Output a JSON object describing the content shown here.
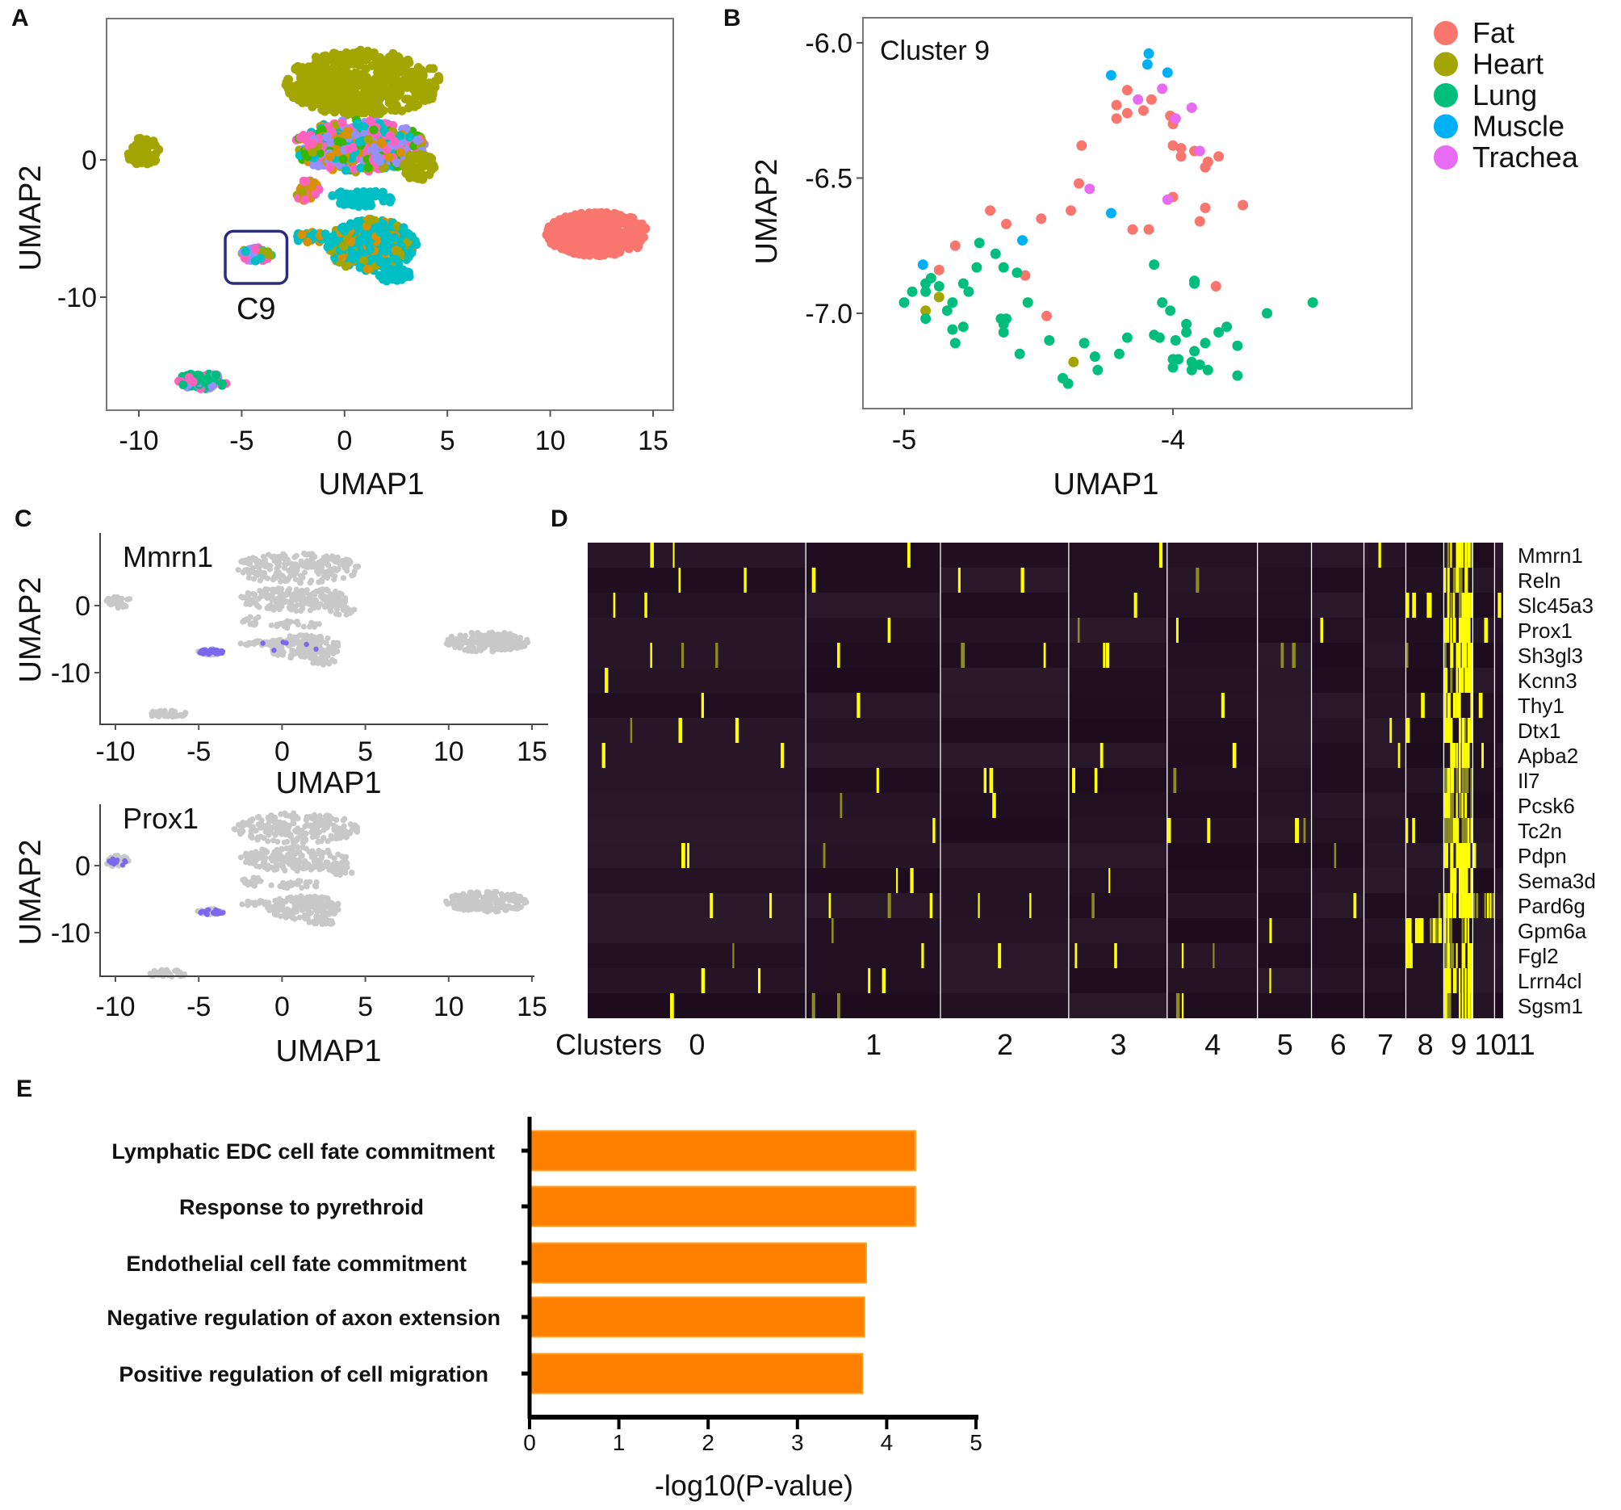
{
  "panel_labels": {
    "a": "A",
    "b": "B",
    "c": "C",
    "d": "D",
    "e": "E"
  },
  "colors": {
    "Fat": "#F8766D",
    "Heart": "#A3A500",
    "Lung": "#00BF7D",
    "Muscle": "#00B0F6",
    "Trachea": "#E76BF3",
    "cyan": "#00BFC4",
    "orange": "#D89000",
    "purple": "#9590FF",
    "pink": "#FF62BC",
    "green": "#39B600",
    "gray": "#C8C8C8",
    "expr": "#7B68EE",
    "bar": "#FF8000",
    "heat_low": "#1C0D1C",
    "heat_high": "#FFFF00",
    "box": "#2B2B80"
  },
  "chart_data": [
    {
      "id": "A",
      "type": "scatter",
      "title": "",
      "xlabel": "UMAP1",
      "ylabel": "UMAP2",
      "xlim": [
        -12,
        16
      ],
      "ylim": [
        -18,
        9
      ],
      "xticks": [
        "-10",
        "-5",
        "0",
        "5",
        "10",
        "15"
      ],
      "xtick_values": [
        -10,
        -5,
        0,
        5,
        10,
        15
      ],
      "yticks": [
        "0",
        "-10"
      ],
      "ytick_values": [
        0,
        -10
      ],
      "annotation": "C9",
      "annotation_box": {
        "x": [
          -5.8,
          -2.8
        ],
        "y": [
          -5.2,
          -9.0
        ]
      },
      "regions": [
        {
          "cx": -9.8,
          "cy": 0.6,
          "rx": 0.8,
          "ry": 1.0,
          "n": 60,
          "mix": [
            "Heart"
          ]
        },
        {
          "cx": 0.9,
          "cy": 5.6,
          "rx": 3.8,
          "ry": 2.4,
          "n": 500,
          "mix": [
            "Heart"
          ]
        },
        {
          "cx": 0.7,
          "cy": 1.0,
          "rx": 3.2,
          "ry": 1.9,
          "n": 400,
          "mix": [
            "pink",
            "purple",
            "orange",
            "green",
            "Heart",
            "cyan",
            "pink",
            "purple"
          ]
        },
        {
          "cx": 3.6,
          "cy": -0.5,
          "rx": 0.8,
          "ry": 1.0,
          "n": 60,
          "mix": [
            "Heart"
          ]
        },
        {
          "cx": -1.8,
          "cy": -2.3,
          "rx": 0.6,
          "ry": 0.8,
          "n": 30,
          "mix": [
            "Heart",
            "orange",
            "pink"
          ]
        },
        {
          "cx": 0.8,
          "cy": -2.8,
          "rx": 1.6,
          "ry": 0.6,
          "n": 60,
          "mix": [
            "cyan"
          ]
        },
        {
          "cx": 1.3,
          "cy": -6.2,
          "rx": 2.2,
          "ry": 1.9,
          "n": 380,
          "mix": [
            "cyan",
            "cyan",
            "cyan",
            "cyan",
            "Heart",
            "orange"
          ]
        },
        {
          "cx": -1.6,
          "cy": -5.6,
          "rx": 0.9,
          "ry": 0.4,
          "n": 40,
          "mix": [
            "cyan",
            "orange"
          ]
        },
        {
          "cx": 2.4,
          "cy": -8.4,
          "rx": 0.8,
          "ry": 0.5,
          "n": 40,
          "mix": [
            "cyan"
          ]
        },
        {
          "cx": 12.3,
          "cy": -5.4,
          "rx": 2.5,
          "ry": 1.6,
          "n": 450,
          "mix": [
            "Fat"
          ]
        },
        {
          "cx": -4.3,
          "cy": -6.9,
          "rx": 0.8,
          "ry": 0.5,
          "n": 60,
          "mix": [
            "pink",
            "cyan",
            "Heart",
            "purple"
          ]
        },
        {
          "cx": -6.9,
          "cy": -16.1,
          "rx": 1.2,
          "ry": 0.6,
          "n": 90,
          "mix": [
            "Lung",
            "Lung",
            "Lung",
            "pink",
            "purple"
          ]
        }
      ]
    },
    {
      "id": "B",
      "type": "scatter",
      "title": "Cluster 9",
      "xlabel": "UMAP1",
      "ylabel": "UMAP2",
      "xlim": [
        -5.16,
        -3.2
      ],
      "ylim": [
        -7.35,
        -5.92
      ],
      "xticks": [
        "-5",
        "-4"
      ],
      "xtick_values": [
        -5,
        -4
      ],
      "yticks": [
        "-6.0",
        "-6.5",
        "-7.0"
      ],
      "ytick_values": [
        -6.0,
        -6.5,
        -7.0
      ],
      "legend": [
        "Fat",
        "Heart",
        "Lung",
        "Muscle",
        "Trachea"
      ],
      "legend_position": "right",
      "series": [
        {
          "name": "Fat",
          "x": [
            -4.17,
            -4.08,
            -4.21,
            -4.17,
            -4.11,
            -4.21,
            -4.01,
            -4.0,
            -4.34,
            -4.0,
            -3.97,
            -3.92,
            -3.97,
            -3.83,
            -3.87,
            -3.88,
            -4.35,
            -4.0,
            -3.74,
            -3.88,
            -4.68,
            -4.38,
            -4.49,
            -4.62,
            -3.9,
            -4.15,
            -4.09,
            -4.81,
            -4.87,
            -4.55,
            -3.84,
            -4.47
          ],
          "y": [
            -6.175,
            -6.21,
            -6.23,
            -6.26,
            -6.25,
            -6.28,
            -6.27,
            -6.3,
            -6.38,
            -6.38,
            -6.39,
            -6.4,
            -6.42,
            -6.42,
            -6.44,
            -6.46,
            -6.52,
            -6.57,
            -6.6,
            -6.61,
            -6.62,
            -6.62,
            -6.65,
            -6.67,
            -6.66,
            -6.69,
            -6.69,
            -6.75,
            -6.84,
            -6.86,
            -6.9,
            -7.01
          ]
        },
        {
          "name": "Heart",
          "x": [
            -4.87,
            -4.92,
            -4.37
          ],
          "y": [
            -6.94,
            -6.99,
            -7.18
          ]
        },
        {
          "name": "Lung",
          "x": [
            -4.72,
            -4.66,
            -4.73,
            -4.63,
            -4.58,
            -4.07,
            -4.9,
            -4.92,
            -4.87,
            -4.78,
            -4.97,
            -4.92,
            -4.76,
            -5.0,
            -4.82,
            -4.54,
            -3.92,
            -3.92,
            -4.92,
            -4.84,
            -4.64,
            -4.62,
            -4.63,
            -4.82,
            -4.78,
            -4.63,
            -4.81,
            -4.46,
            -4.33,
            -4.57,
            -4.29,
            -4.28,
            -4.41,
            -4.39,
            -4.17,
            -4.2,
            -4.04,
            -4.01,
            -4.07,
            -4.05,
            -3.99,
            -3.95,
            -3.95,
            -4.0,
            -3.98,
            -4.0,
            -3.92,
            -3.93,
            -3.9,
            -3.93,
            -3.87,
            -3.88,
            -3.83,
            -3.8,
            -3.76,
            -3.76,
            -3.65,
            -3.48
          ],
          "y": [
            -6.74,
            -6.78,
            -6.83,
            -6.83,
            -6.85,
            -6.82,
            -6.87,
            -6.89,
            -6.9,
            -6.89,
            -6.92,
            -6.92,
            -6.92,
            -6.96,
            -6.96,
            -6.96,
            -6.88,
            -6.89,
            -7.02,
            -6.99,
            -7.02,
            -7.02,
            -7.04,
            -7.06,
            -7.05,
            -7.07,
            -7.11,
            -7.1,
            -7.11,
            -7.15,
            -7.16,
            -7.21,
            -7.24,
            -7.26,
            -7.09,
            -7.15,
            -6.96,
            -6.99,
            -7.08,
            -7.09,
            -7.1,
            -7.04,
            -7.07,
            -7.17,
            -7.17,
            -7.2,
            -7.14,
            -7.18,
            -7.19,
            -7.21,
            -7.21,
            -7.11,
            -7.07,
            -7.05,
            -7.12,
            -7.23,
            -7.0,
            -6.96
          ]
        },
        {
          "name": "Muscle",
          "x": [
            -4.09,
            -4.095,
            -4.02,
            -4.23,
            -4.23,
            -4.56,
            -4.93
          ],
          "y": [
            -6.04,
            -6.08,
            -6.11,
            -6.12,
            -6.63,
            -6.73,
            -6.82
          ]
        },
        {
          "name": "Trachea",
          "x": [
            -4.04,
            -4.13,
            -3.93,
            -3.99,
            -3.9,
            -4.31,
            -4.02
          ],
          "y": [
            -6.17,
            -6.21,
            -6.24,
            -6.28,
            -6.4,
            -6.54,
            -6.58
          ]
        }
      ]
    },
    {
      "id": "C1",
      "type": "scatter",
      "title": "Mmrn1",
      "xlabel": "UMAP1",
      "ylabel": "UMAP2",
      "xlim": [
        -12,
        16
      ],
      "ylim": [
        -18,
        9
      ],
      "xticks": [
        "-10",
        "-5",
        "0",
        "5",
        "10",
        "15"
      ],
      "xtick_values": [
        -10,
        -5,
        0,
        5,
        10,
        15
      ],
      "yticks": [
        "0",
        "-10"
      ],
      "ytick_values": [
        0,
        -10
      ],
      "expressing_regions": [
        {
          "cx": -4.3,
          "cy": -6.9,
          "rx": 0.8,
          "ry": 0.4,
          "n": 40
        },
        {
          "cx": 0.5,
          "cy": -6.0,
          "rx": 2,
          "ry": 1.5,
          "n": 6
        }
      ]
    },
    {
      "id": "C2",
      "type": "scatter",
      "title": "Prox1",
      "xlabel": "UMAP1",
      "ylabel": "UMAP2",
      "xlim": [
        -12,
        16
      ],
      "ylim": [
        -18,
        9
      ],
      "xticks": [
        "-10",
        "-5",
        "0",
        "5",
        "10",
        "15"
      ],
      "xtick_values": [
        -10,
        -5,
        0,
        5,
        10,
        15
      ],
      "yticks": [
        "0",
        "-10"
      ],
      "ytick_values": [
        0,
        -10
      ],
      "expressing_regions": [
        {
          "cx": -4.3,
          "cy": -6.9,
          "rx": 0.8,
          "ry": 0.4,
          "n": 25
        },
        {
          "cx": -9.8,
          "cy": 0.6,
          "rx": 0.6,
          "ry": 0.6,
          "n": 10
        }
      ]
    },
    {
      "id": "D",
      "type": "heatmap",
      "genes": [
        "Mmrn1",
        "Reln",
        "Slc45a3",
        "Prox1",
        "Sh3gl3",
        "Kcnn3",
        "Thy1",
        "Dtx1",
        "Apba2",
        "Il7",
        "Pcsk6",
        "Tc2n",
        "Pdpn",
        "Sema3d",
        "Pard6g",
        "Gpm6a",
        "Fgl2",
        "Lrrn4cl",
        "Sgsm1"
      ],
      "clusters_label": "Clusters",
      "clusters": [
        "0",
        "1",
        "2",
        "3",
        "4",
        "5",
        "6",
        "7",
        "8",
        "9",
        "10",
        "11"
      ],
      "cluster_cell_share": [
        271,
        167,
        159,
        122,
        112,
        67,
        65,
        52,
        47,
        36,
        27,
        10
      ],
      "high_expression_fraction": {
        "default": 0.015,
        "9": 0.72,
        "8": {
          "Slc45a3": 0.35,
          "Gpm6a": 0.65,
          "Fgl2": 0.1,
          "Pard6g": 0.15,
          "Prox1": 0.05
        },
        "10": {
          "Pard6g": 0.75
        }
      }
    },
    {
      "id": "E",
      "type": "bar",
      "orientation": "horizontal",
      "categories": [
        "Lymphatic EDC cell fate commitment",
        "Response to pyrethroid",
        "Endothelial cell fate commitment",
        "Negative regulation of axon extension",
        "Positive regulation of cell migration"
      ],
      "values": [
        4.32,
        4.32,
        3.77,
        3.75,
        3.73
      ],
      "xlabel": "-log10(P-value)",
      "xlim": [
        0,
        5
      ],
      "xticks": [
        "0",
        "1",
        "2",
        "3",
        "4",
        "5"
      ],
      "xtick_values": [
        0,
        1,
        2,
        3,
        4,
        5
      ]
    }
  ]
}
